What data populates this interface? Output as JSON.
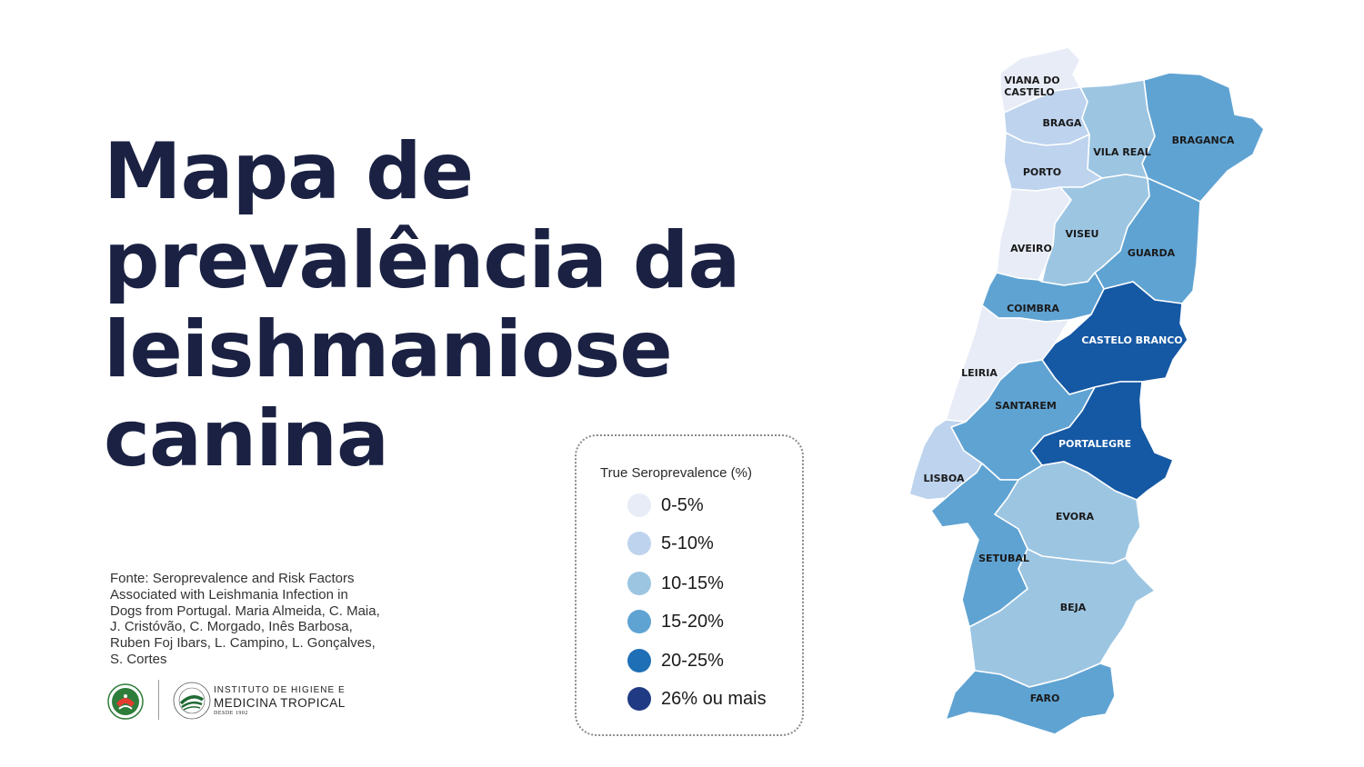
{
  "title": {
    "line1": "Mapa de",
    "line2": "prevalência da",
    "line3": "leishmaniose",
    "line4": "canina"
  },
  "source": "Fonte: Seroprevalence and Risk Factors Associated with Leishmania Infection in Dogs from Portugal. Maria Almeida, C. Maia, J. Cristóvão, C. Morgado, Inês Barbosa, Ruben Foj Ibars, L. Campino, L. Gonçalves, S. Cortes",
  "logos": {
    "nova_icon": "nova-university-seal-icon",
    "ihmt_icon": "ihmt-seal-icon",
    "ihmt_line1": "INSTITUTO DE HIGIENE E",
    "ihmt_line2": "MEDICINA TROPICAL",
    "ihmt_line3": "DESDE 1902"
  },
  "legend": {
    "title": "True Seroprevalence (%)",
    "items": [
      {
        "label": "0-5%",
        "color": "#e7ecf7"
      },
      {
        "label": "5-10%",
        "color": "#bdd3ee"
      },
      {
        "label": "10-15%",
        "color": "#9cc5e2"
      },
      {
        "label": "15-20%",
        "color": "#5fa3d3"
      },
      {
        "label": "20-25%",
        "color": "#1f6fb6"
      },
      {
        "label": "26% ou mais",
        "color": "#203b84"
      }
    ]
  },
  "map": {
    "regions": [
      {
        "name": "VIANA DO CASTELO",
        "label_line1": "VIANA DO",
        "label_line2": "CASTELO",
        "color": "#e7ecf7"
      },
      {
        "name": "BRAGA",
        "label_line1": "BRAGA",
        "color": "#bdd3ee"
      },
      {
        "name": "VILA REAL",
        "label_line1": "VILA REAL",
        "color": "#9cc5e2"
      },
      {
        "name": "BRAGANCA",
        "label_line1": "BRAGANCA",
        "color": "#5fa3d3"
      },
      {
        "name": "PORTO",
        "label_line1": "PORTO",
        "color": "#bdd3ee"
      },
      {
        "name": "AVEIRO",
        "label_line1": "AVEIRO",
        "color": "#e7ecf7"
      },
      {
        "name": "VISEU",
        "label_line1": "VISEU",
        "color": "#9cc5e2"
      },
      {
        "name": "GUARDA",
        "label_line1": "GUARDA",
        "color": "#5fa3d3"
      },
      {
        "name": "COIMBRA",
        "label_line1": "COIMBRA",
        "color": "#5fa3d3"
      },
      {
        "name": "CASTELO BRANCO",
        "label_line1": "CASTELO BRANCO",
        "color": "#1558a4"
      },
      {
        "name": "LEIRIA",
        "label_line1": "LEIRIA",
        "color": "#e7ecf7"
      },
      {
        "name": "SANTAREM",
        "label_line1": "SANTAREM",
        "color": "#5fa3d3"
      },
      {
        "name": "PORTALEGRE",
        "label_line1": "PORTALEGRE",
        "color": "#1558a4"
      },
      {
        "name": "LISBOA",
        "label_line1": "LISBOA",
        "color": "#bdd3ee"
      },
      {
        "name": "SETUBAL",
        "label_line1": "SETUBAL",
        "color": "#5fa3d3"
      },
      {
        "name": "EVORA",
        "label_line1": "EVORA",
        "color": "#9cc5e2"
      },
      {
        "name": "BEJA",
        "label_line1": "BEJA",
        "color": "#9cc5e2"
      },
      {
        "name": "FARO",
        "label_line1": "FARO",
        "color": "#5fa3d3"
      }
    ]
  }
}
